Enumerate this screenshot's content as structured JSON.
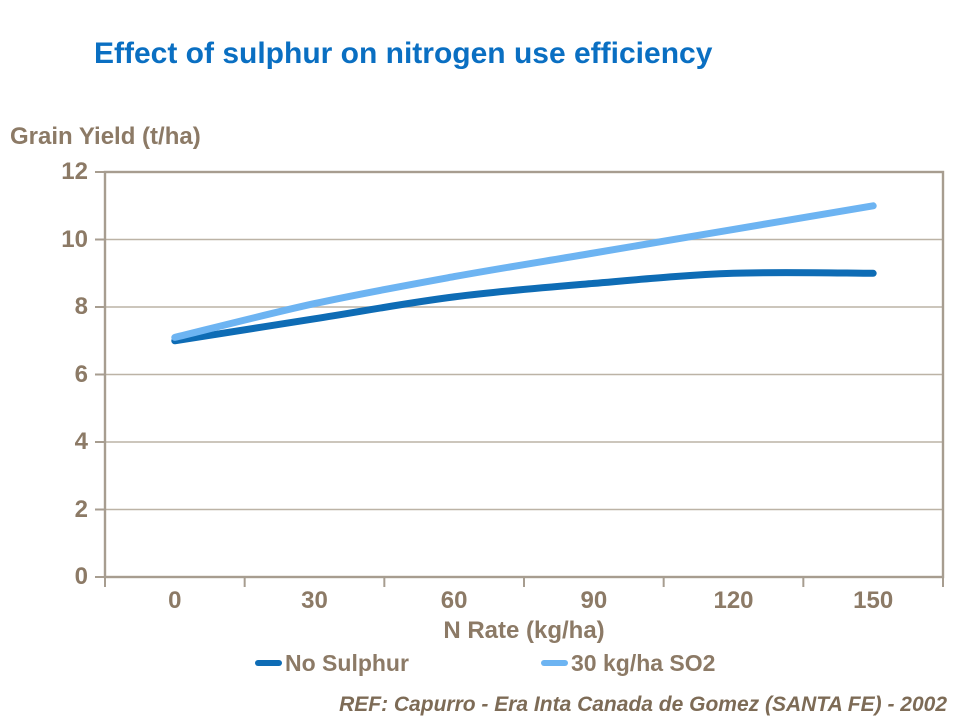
{
  "title": {
    "text": "Effect of sulphur on nitrogen use efficiency",
    "color": "#0a6fc2"
  },
  "footer": {
    "text": "REF: Capurro -  Era Inta Canada de Gomez (SANTA FE) - 2002",
    "color": "#7d6b56"
  },
  "chart_data": {
    "type": "line",
    "title": "Effect of sulphur on nitrogen use efficiency",
    "xlabel": "N Rate (kg/ha)",
    "ylabel": "Grain Yield (t/ha)",
    "categories": [
      "0",
      "30",
      "60",
      "90",
      "120",
      "150"
    ],
    "series": [
      {
        "name": "No Sulphur",
        "color": "#0e6cb5",
        "values": [
          7.0,
          7.65,
          8.3,
          8.7,
          9.0,
          9.0
        ]
      },
      {
        "name": "30 kg/ha SO2",
        "color": "#6db4f2",
        "values": [
          7.1,
          8.1,
          8.9,
          9.6,
          10.3,
          11.0
        ]
      }
    ],
    "ylim": [
      0,
      12
    ],
    "yticks": [
      0,
      2,
      4,
      6,
      8,
      10,
      12
    ],
    "grid": true,
    "smooth": true,
    "legend_position": "bottom",
    "colors": {
      "axis": "#a79d90",
      "gridline": "#bcb3a6",
      "text": "#8c7a66"
    }
  }
}
